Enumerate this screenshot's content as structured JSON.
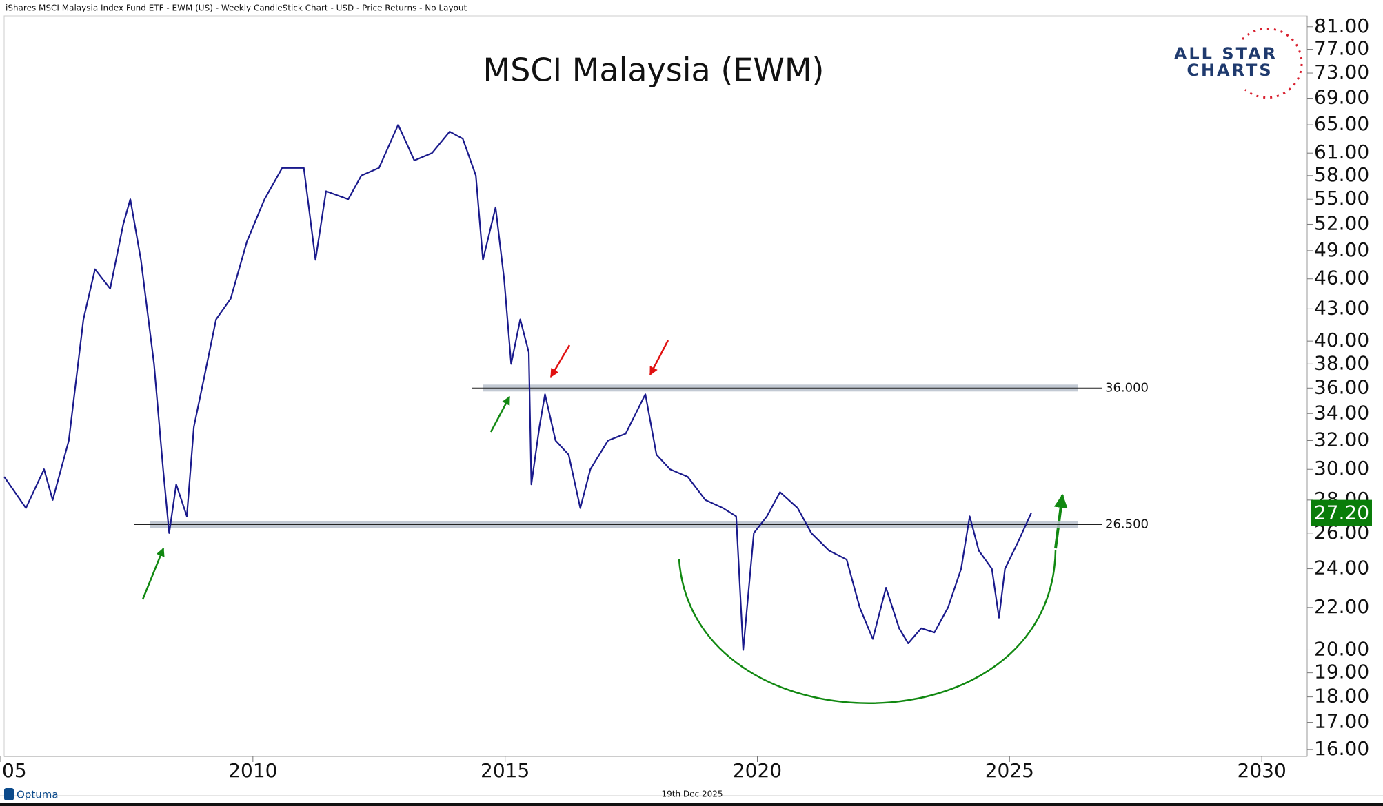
{
  "header": "iShares MSCI Malaysia Index Fund ETF - EWM (US) - Weekly CandleStick Chart - USD - Price Returns - No Layout",
  "logo": {
    "line1": "ALL STAR",
    "line2": "CHARTS"
  },
  "footer": {
    "brand": "Optuma",
    "date": "19th Dec 2025"
  },
  "chart_data": {
    "type": "line",
    "title": "MSCI Malaysia (EWM)",
    "log_scale": true,
    "x": [
      2005.07,
      2005.5,
      2005.86,
      2006.03,
      2006.35,
      2006.64,
      2006.87,
      2007.17,
      2007.43,
      2007.57,
      2007.78,
      2008.04,
      2008.22,
      2008.34,
      2008.48,
      2008.69,
      2008.83,
      2009.04,
      2009.27,
      2009.56,
      2009.88,
      2010.23,
      2010.58,
      2011.01,
      2011.24,
      2011.45,
      2011.89,
      2012.15,
      2012.5,
      2012.88,
      2013.2,
      2013.55,
      2013.9,
      2014.16,
      2014.42,
      2014.56,
      2014.81,
      2014.98,
      2015.12,
      2015.3,
      2015.47,
      2015.52,
      2015.68,
      2015.79,
      2016.0,
      2016.26,
      2016.49,
      2016.69,
      2017.04,
      2017.39,
      2017.78,
      2018.0,
      2018.27,
      2018.62,
      2018.97,
      2019.32,
      2019.58,
      2019.72,
      2019.93,
      2020.19,
      2020.45,
      2020.8,
      2021.07,
      2021.42,
      2021.77,
      2022.03,
      2022.29,
      2022.55,
      2022.81,
      2022.99,
      2023.25,
      2023.51,
      2023.78,
      2024.04,
      2024.21,
      2024.39,
      2024.65,
      2024.79,
      2024.91,
      2025.17,
      2025.43
    ],
    "series": [
      {
        "name": "EWM",
        "color": "#1a1a8c",
        "values": [
          29.5,
          27.5,
          30,
          28,
          32,
          42,
          47,
          45,
          52,
          55,
          48,
          38,
          30,
          26,
          29,
          27,
          33,
          37,
          42,
          44,
          50,
          55,
          59,
          59,
          48,
          56,
          55,
          58,
          59,
          65,
          60,
          61,
          64,
          63,
          58,
          48,
          54,
          46,
          38,
          42,
          39,
          29,
          33,
          35.5,
          32,
          31,
          27.5,
          30,
          32,
          32.5,
          35.5,
          31,
          30,
          29.5,
          28,
          27.5,
          27,
          20,
          26,
          27,
          28.5,
          27.5,
          26,
          25,
          24.5,
          22,
          20.5,
          23,
          21,
          20.3,
          21,
          20.8,
          22,
          24,
          27,
          25,
          24,
          21.5,
          24,
          25.5,
          27.2
        ]
      }
    ],
    "xlim": [
      2005,
      2030.9
    ],
    "xticks": [
      {
        "value": 2005,
        "label": "05"
      },
      2010,
      2015,
      2020,
      2025,
      2030
    ],
    "ylim": [
      15.75,
      83
    ],
    "yticks": [
      {
        "value": 16,
        "label": "16.00"
      },
      {
        "value": 17,
        "label": "17.00"
      },
      {
        "value": 18,
        "label": "18.00"
      },
      {
        "value": 19,
        "label": "19.00"
      },
      {
        "value": 20,
        "label": "20.00"
      },
      {
        "value": 22,
        "label": "22.00"
      },
      {
        "value": 24,
        "label": "24.00"
      },
      {
        "value": 26,
        "label": "26.00"
      },
      {
        "value": 28,
        "label": "28.00"
      },
      {
        "value": 30,
        "label": "30.00"
      },
      {
        "value": 32,
        "label": "32.00"
      },
      {
        "value": 34,
        "label": "34.00"
      },
      {
        "value": 36,
        "label": "36.00"
      },
      {
        "value": 38,
        "label": "38.00"
      },
      {
        "value": 40,
        "label": "40.00"
      },
      {
        "value": 43,
        "label": "43.00"
      },
      {
        "value": 46,
        "label": "46.00"
      },
      {
        "value": 49,
        "label": "49.00"
      },
      {
        "value": 52,
        "label": "52.00"
      },
      {
        "value": 55,
        "label": "55.00"
      },
      {
        "value": 58,
        "label": "58.00"
      },
      {
        "value": 61,
        "label": "61.00"
      },
      {
        "value": 65,
        "label": "65.00"
      },
      {
        "value": 69,
        "label": "69.00"
      },
      {
        "value": 73,
        "label": "73.00"
      },
      {
        "value": 77,
        "label": "77.00"
      },
      {
        "value": 81,
        "label": "81.00"
      }
    ],
    "levels": [
      {
        "value": 36,
        "label": "36.000"
      },
      {
        "value": 26.5,
        "label": "26.500"
      }
    ],
    "last_price": {
      "value": 27.2,
      "label": "27.20",
      "color": "#0a7d0a"
    }
  }
}
